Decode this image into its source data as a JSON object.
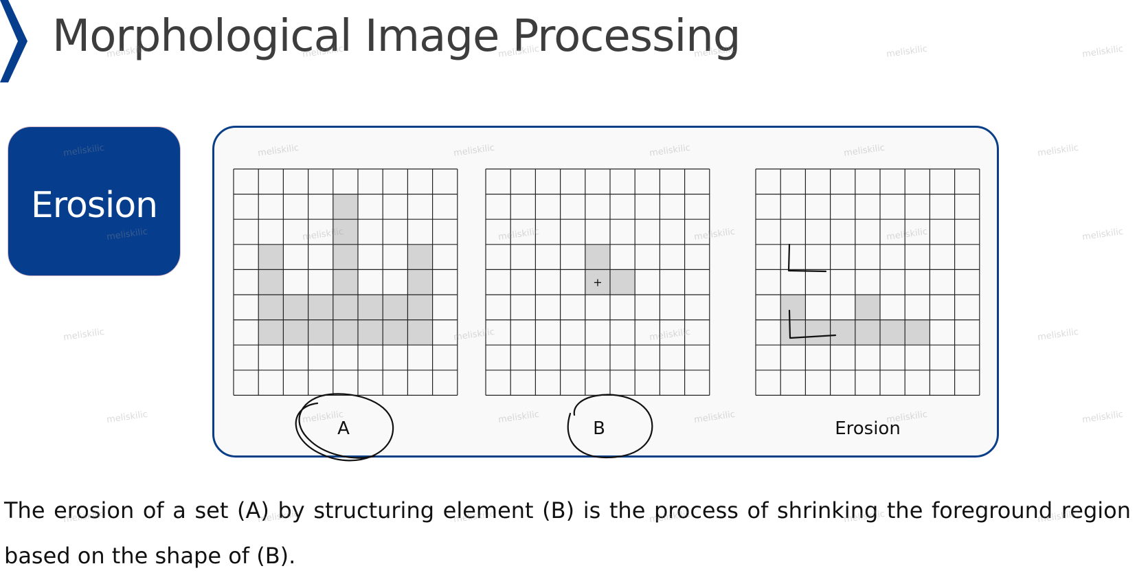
{
  "slide": {
    "title": "Morphological Image Processing",
    "chevron_icon": "chevron-right-icon",
    "accent_color": "#063d8d"
  },
  "badge": {
    "label": "Erosion",
    "color": "#063d8d"
  },
  "figure": {
    "panel_border_color": "#0a3f88",
    "cell_fill_color": "#d4d4d4",
    "grids": [
      {
        "label": "A",
        "rows": 9,
        "cols": 9,
        "filled": [
          [
            1,
            4
          ],
          [
            2,
            4
          ],
          [
            3,
            1
          ],
          [
            3,
            4
          ],
          [
            3,
            7
          ],
          [
            4,
            1
          ],
          [
            4,
            4
          ],
          [
            4,
            7
          ],
          [
            5,
            1
          ],
          [
            5,
            2
          ],
          [
            5,
            3
          ],
          [
            5,
            4
          ],
          [
            5,
            5
          ],
          [
            5,
            6
          ],
          [
            5,
            7
          ],
          [
            6,
            1
          ],
          [
            6,
            2
          ],
          [
            6,
            3
          ],
          [
            6,
            4
          ],
          [
            6,
            5
          ],
          [
            6,
            6
          ],
          [
            6,
            7
          ]
        ],
        "origin_marker": ""
      },
      {
        "label": "B",
        "rows": 9,
        "cols": 9,
        "filled": [
          [
            3,
            4
          ],
          [
            4,
            4
          ],
          [
            4,
            5
          ]
        ],
        "origin_marker": "+"
      },
      {
        "label": "Erosion",
        "rows": 9,
        "cols": 9,
        "filled": [
          [
            5,
            1
          ],
          [
            5,
            4
          ],
          [
            6,
            1
          ],
          [
            6,
            2
          ],
          [
            6,
            3
          ],
          [
            6,
            4
          ],
          [
            6,
            5
          ],
          [
            6,
            6
          ]
        ],
        "origin_marker": ""
      }
    ],
    "annotations": [
      "handwritten-circle-a",
      "handwritten-circle-b",
      "handwritten-corner-marks"
    ]
  },
  "description": "The erosion of a set (A) by structuring element (B) is the process of shrinking the foreground region based on the shape of (B).",
  "watermark": "meliskilic"
}
